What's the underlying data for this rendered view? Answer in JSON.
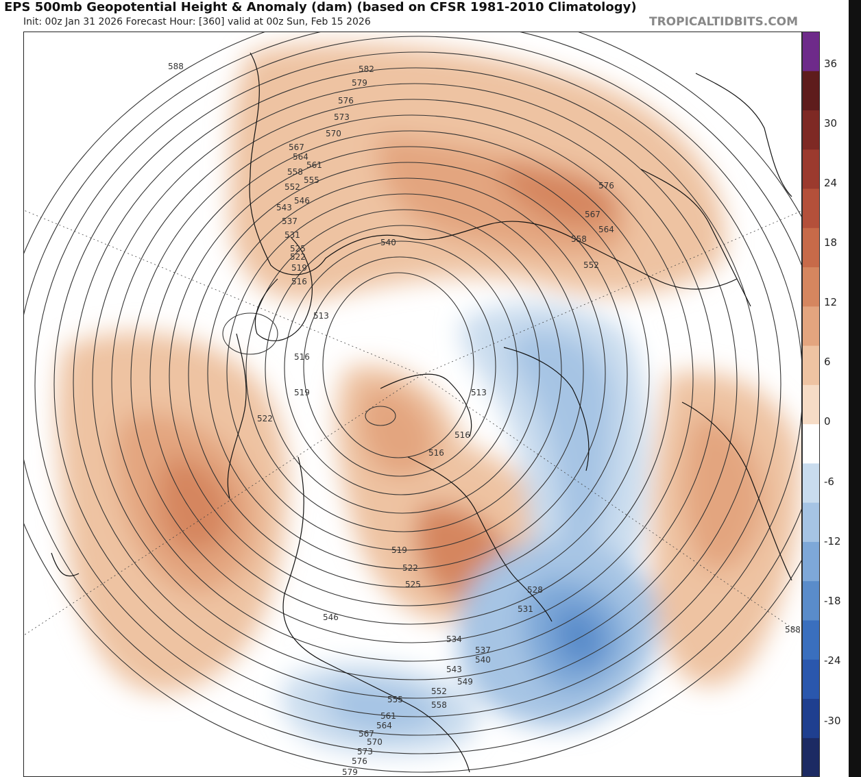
{
  "header": {
    "title": "EPS 500mb Geopotential Height & Anomaly (dam) (based on CFSR 1981-2010 Climatology)",
    "subtitle": "Init: 00z Jan 31 2026   Forecast Hour: [360]   valid at 00z Sun, Feb 15 2026",
    "brand": "TROPICALTIDBITS.COM"
  },
  "colorbar": {
    "ticks": [
      "36",
      "30",
      "24",
      "18",
      "12",
      "6",
      "0",
      "-6",
      "-12",
      "-18",
      "-24",
      "-30"
    ],
    "colors": [
      "#1c2a63",
      "#1f3f8f",
      "#2a57ad",
      "#3a6fbe",
      "#5a8cca",
      "#7ea8d8",
      "#a6c4e4",
      "#c9dcee",
      "#ffffff",
      "#f6dcc6",
      "#eec3a2",
      "#e3a57f",
      "#d5865f",
      "#c76a49",
      "#b4503a",
      "#9b3a2e",
      "#7e2924",
      "#5e1c1c",
      "#6e2a8a"
    ]
  },
  "contour_labels": [
    "588",
    "582",
    "579",
    "576",
    "573",
    "570",
    "567",
    "564",
    "561",
    "558",
    "555",
    "552",
    "546",
    "543",
    "537",
    "531",
    "525",
    "522",
    "519",
    "516",
    "540",
    "513",
    "576",
    "567",
    "564",
    "558",
    "552",
    "516",
    "519",
    "522",
    "513",
    "516",
    "516",
    "519",
    "522",
    "525",
    "528",
    "531",
    "546",
    "534",
    "537",
    "540",
    "543",
    "549",
    "552",
    "555",
    "558",
    "561",
    "564",
    "567",
    "570",
    "573",
    "576",
    "579",
    "588"
  ]
}
